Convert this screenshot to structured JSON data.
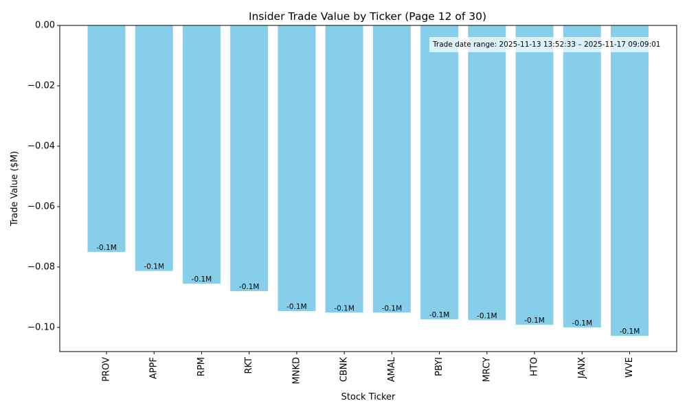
{
  "chart_data": {
    "type": "bar",
    "title": "Insider Trade Value by Ticker (Page 12 of 30)",
    "xlabel": "Stock Ticker",
    "ylabel": "Trade Value ($M)",
    "categories": [
      "PROV",
      "APPF",
      "RPM",
      "RKT",
      "MNKD",
      "CBNK",
      "AMAL",
      "PBYI",
      "MRCY",
      "HTO",
      "JANX",
      "WVE"
    ],
    "values": [
      -0.075,
      -0.0813,
      -0.0855,
      -0.088,
      -0.0946,
      -0.0951,
      -0.0951,
      -0.0973,
      -0.0976,
      -0.0991,
      -0.1,
      -0.1028
    ],
    "data_labels": [
      "-0.1M",
      "-0.1M",
      "-0.1M",
      "-0.1M",
      "-0.1M",
      "-0.1M",
      "-0.1M",
      "-0.1M",
      "-0.1M",
      "-0.1M",
      "-0.1M",
      "-0.1M"
    ],
    "ylim": [
      -0.108,
      0.0
    ],
    "yticks": [
      0.0,
      -0.02,
      -0.04,
      -0.06,
      -0.08,
      -0.1
    ],
    "ytick_labels": [
      "0.00",
      "−0.02",
      "−0.04",
      "−0.06",
      "−0.08",
      "−0.10"
    ],
    "grid": false,
    "bar_color": "#87ceeb",
    "annotation": "Trade date range: 2025-11-13 13:52:33 – 2025-11-17 09:09:01"
  }
}
